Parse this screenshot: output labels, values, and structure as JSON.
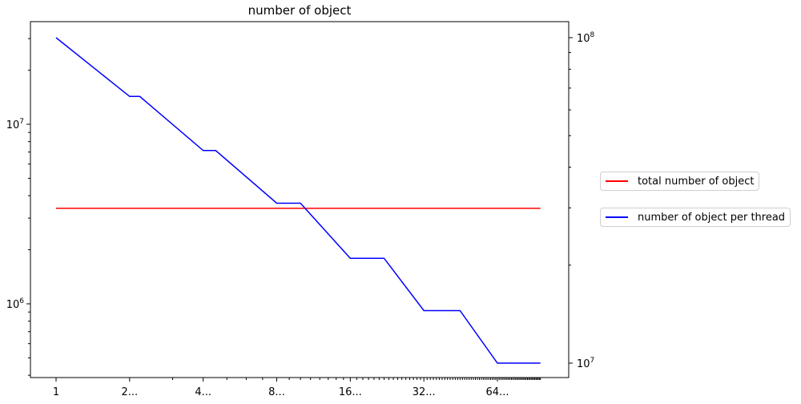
{
  "chart_data": {
    "type": "line",
    "title": "number of object",
    "xlabel": "",
    "xscale": "log2",
    "x_major_ticks": [
      {
        "value": 1,
        "label": "1"
      },
      {
        "value": 2,
        "label": "2..."
      },
      {
        "value": 4,
        "label": "4..."
      },
      {
        "value": 8,
        "label": "8..."
      },
      {
        "value": 16,
        "label": "16..."
      },
      {
        "value": 32,
        "label": "32..."
      },
      {
        "value": 64,
        "label": "64..."
      }
    ],
    "xlim": [
      1,
      96
    ],
    "left_axis": {
      "scale": "log",
      "ylim": [
        400000,
        40000000
      ],
      "ticks": [
        {
          "value": 1000000,
          "base": "10",
          "exp": "6"
        },
        {
          "value": 10000000,
          "base": "10",
          "exp": "7"
        }
      ]
    },
    "right_axis": {
      "scale": "log",
      "ylim": [
        9000000,
        115000000
      ],
      "ticks": [
        {
          "value": 10000000,
          "base": "10",
          "exp": "7"
        },
        {
          "value": 100000000,
          "base": "10",
          "exp": "8"
        }
      ]
    },
    "series": [
      {
        "name": "total number of object",
        "color": "#ff0000",
        "axis": "left",
        "x": [
          1,
          96
        ],
        "y": [
          3400000,
          3400000
        ]
      },
      {
        "name": "number of object per thread",
        "color": "#0000ff",
        "axis": "right",
        "x": [
          1,
          2,
          2.2,
          4,
          4.5,
          8,
          10,
          16,
          22,
          32,
          45,
          64,
          96
        ],
        "y": [
          100000000,
          66000000,
          66000000,
          45000000,
          45000000,
          31000000,
          31000000,
          21000000,
          21000000,
          14500000,
          14500000,
          10000000,
          10000000
        ]
      }
    ],
    "legend": "center-right, outside plot",
    "grid": false
  }
}
